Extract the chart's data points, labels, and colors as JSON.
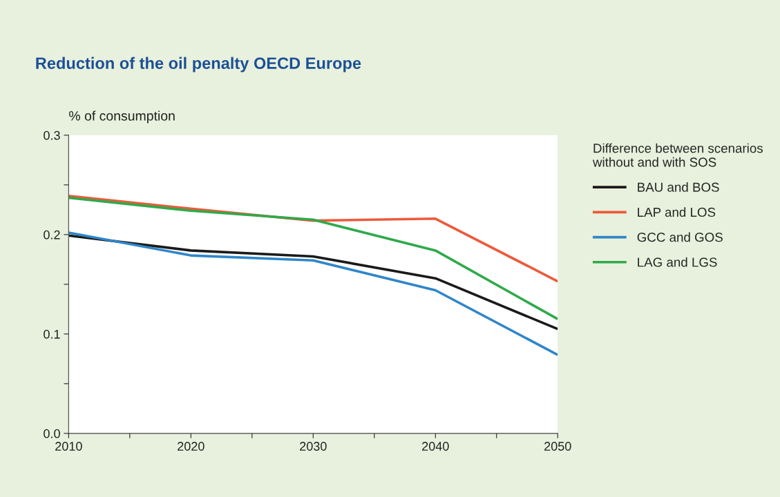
{
  "chart_data": {
    "type": "line",
    "title": "Reduction of the oil penalty OECD Europe",
    "ylabel": "% of consumption",
    "legend_title": "Difference between scenarios\nwithout and with SOS",
    "legend": "right",
    "grid": false,
    "marker": "none",
    "line_style": "solid",
    "x": [
      2010,
      2020,
      2030,
      2040,
      2050
    ],
    "xlim": [
      2010,
      2050
    ],
    "xticks": [
      2010,
      {
        "value": 2015,
        "label": null
      },
      2020,
      {
        "value": 2025,
        "label": null
      },
      2030,
      {
        "value": 2035,
        "label": null
      },
      2040,
      {
        "value": 2045,
        "label": null
      },
      2050
    ],
    "ylim": [
      0,
      0.3
    ],
    "yticks": [
      {
        "value": 0,
        "label": "0.0"
      },
      {
        "value": 0.05,
        "label": null
      },
      0.1,
      {
        "value": 0.15,
        "label": null
      },
      0.2,
      {
        "value": 0.25,
        "label": null
      },
      0.3
    ],
    "series": [
      {
        "name": "BAU and BOS",
        "color": "#1a1a1a",
        "values": [
          0.199,
          0.184,
          0.178,
          0.156,
          0.105
        ]
      },
      {
        "name": "LAP and LOS",
        "color": "#ec5a3c",
        "values": [
          0.239,
          0.226,
          0.214,
          0.216,
          0.153
        ]
      },
      {
        "name": "GCC and GOS",
        "color": "#2f86c9",
        "values": [
          0.202,
          0.179,
          0.174,
          0.144,
          0.079
        ]
      },
      {
        "name": "LAG and LGS",
        "color": "#2eaa4a",
        "values": [
          0.237,
          0.224,
          0.215,
          0.184,
          0.115
        ]
      }
    ]
  }
}
